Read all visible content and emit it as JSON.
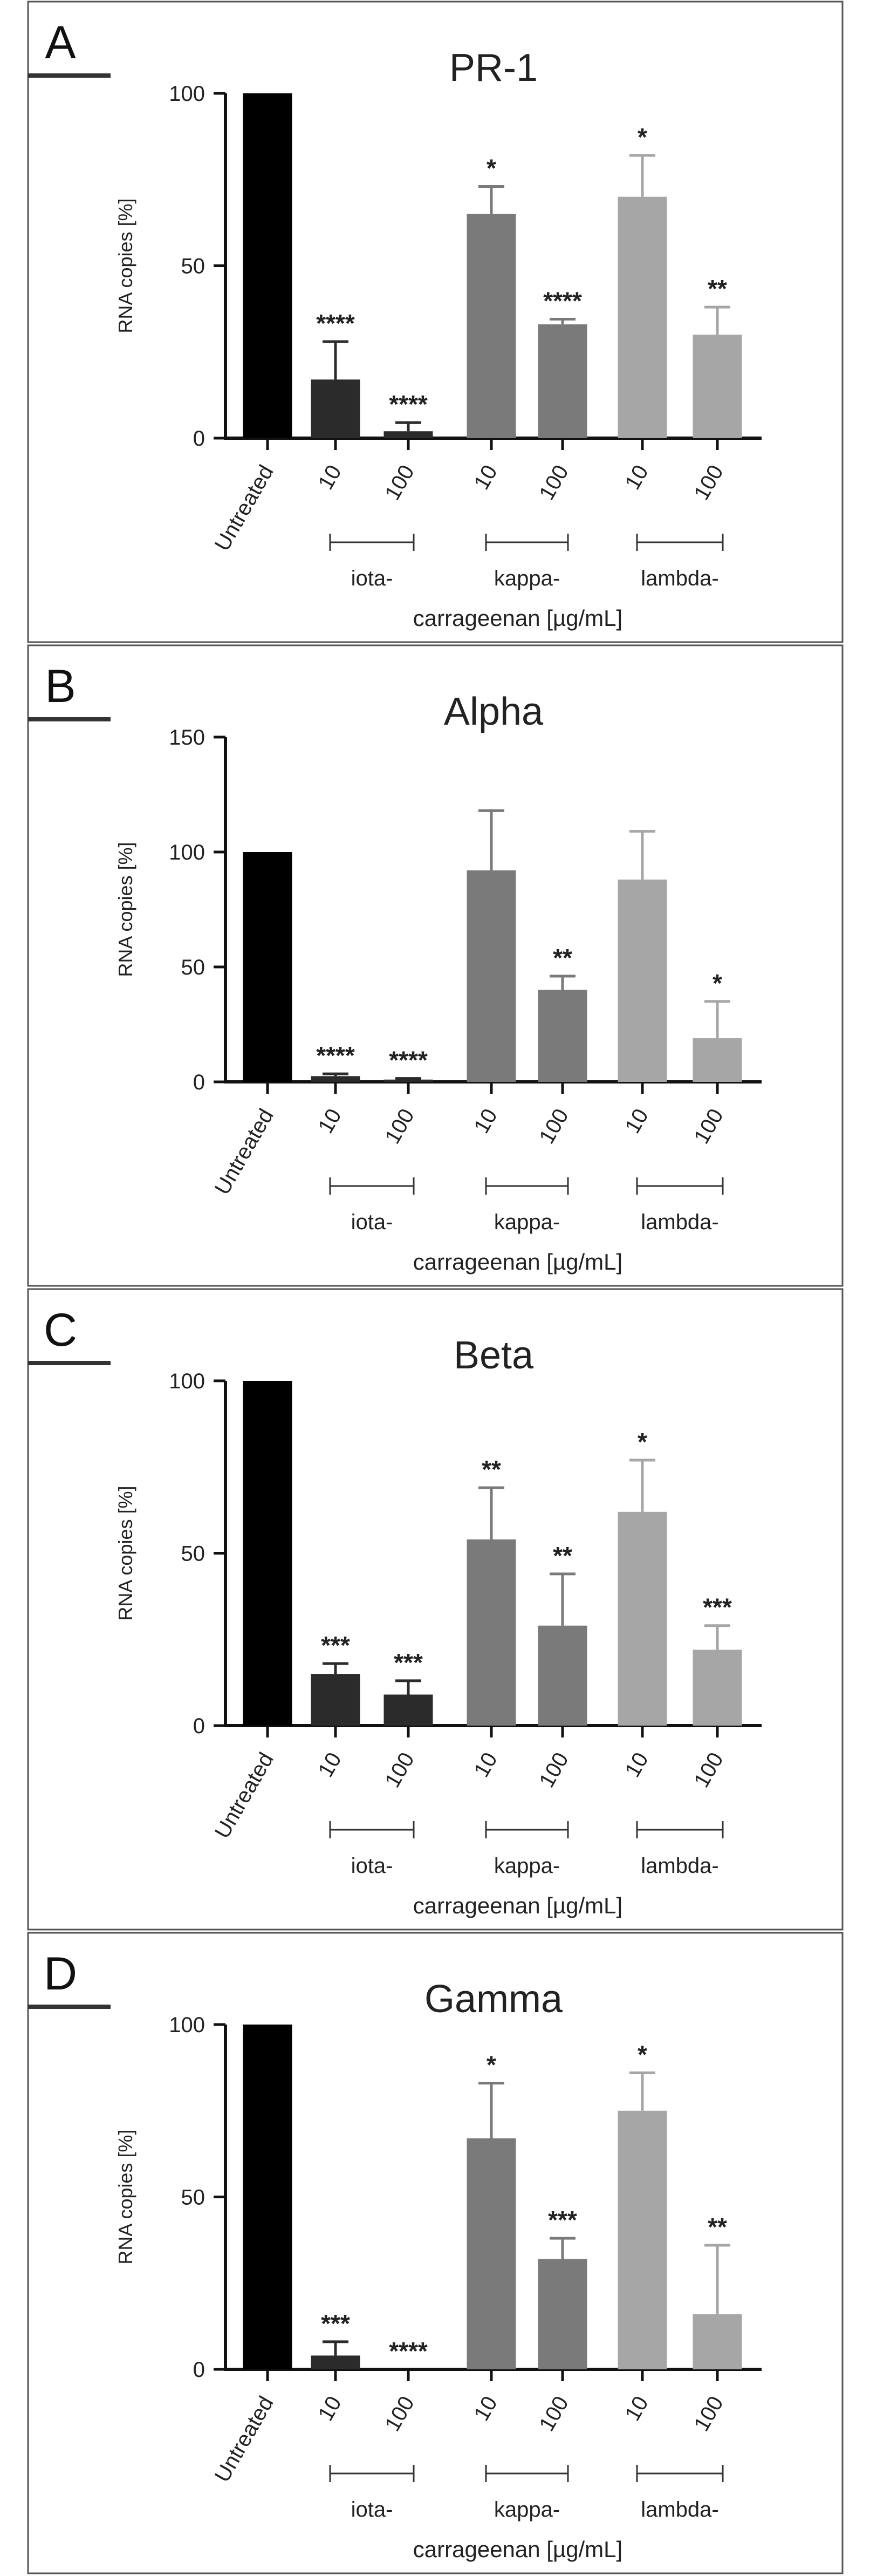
{
  "chart_data": [
    {
      "panel": "A",
      "type": "bar",
      "title": "PR-1",
      "ylabel": "RNA copies [%]",
      "xlabel": "carrageenan [µg/mL]",
      "ylim": [
        0,
        100
      ],
      "yticks": [
        0,
        50,
        100
      ],
      "categories": [
        "Untreated",
        "10",
        "100",
        "10",
        "100",
        "10",
        "100"
      ],
      "groups": [
        "iota-",
        "kappa-",
        "lambda-"
      ],
      "values": [
        100,
        17,
        2,
        65,
        33,
        70,
        30
      ],
      "errors": [
        0,
        11,
        2.5,
        8,
        1.5,
        12,
        8
      ],
      "significance": [
        "",
        "****",
        "****",
        "*",
        "****",
        "*",
        "**"
      ],
      "colors": [
        "#000000",
        "#2b2b2b",
        "#2b2b2b",
        "#7a7a7a",
        "#7a7a7a",
        "#a6a6a6",
        "#a6a6a6"
      ]
    },
    {
      "panel": "B",
      "type": "bar",
      "title": "Alpha",
      "ylabel": "RNA copies [%]",
      "xlabel": "carrageenan [µg/mL]",
      "ylim": [
        0,
        150
      ],
      "yticks": [
        0,
        50,
        100,
        150
      ],
      "categories": [
        "Untreated",
        "10",
        "100",
        "10",
        "100",
        "10",
        "100"
      ],
      "groups": [
        "iota-",
        "kappa-",
        "lambda-"
      ],
      "values": [
        100,
        2.5,
        1,
        92,
        40,
        88,
        19
      ],
      "errors": [
        0,
        1,
        0.5,
        26,
        6,
        21,
        16
      ],
      "significance": [
        "",
        "****",
        "****",
        "",
        "**",
        "",
        "*"
      ],
      "colors": [
        "#000000",
        "#2b2b2b",
        "#2b2b2b",
        "#7a7a7a",
        "#7a7a7a",
        "#a6a6a6",
        "#a6a6a6"
      ]
    },
    {
      "panel": "C",
      "type": "bar",
      "title": "Beta",
      "ylabel": "RNA copies [%]",
      "xlabel": "carrageenan [µg/mL]",
      "ylim": [
        0,
        100
      ],
      "yticks": [
        0,
        50,
        100
      ],
      "categories": [
        "Untreated",
        "10",
        "100",
        "10",
        "100",
        "10",
        "100"
      ],
      "groups": [
        "iota-",
        "kappa-",
        "lambda-"
      ],
      "values": [
        100,
        15,
        9,
        54,
        29,
        62,
        22
      ],
      "errors": [
        0,
        3,
        4,
        15,
        15,
        15,
        7
      ],
      "significance": [
        "",
        "***",
        "***",
        "**",
        "**",
        "*",
        "***"
      ],
      "colors": [
        "#000000",
        "#2b2b2b",
        "#2b2b2b",
        "#7a7a7a",
        "#7a7a7a",
        "#a6a6a6",
        "#a6a6a6"
      ]
    },
    {
      "panel": "D",
      "type": "bar",
      "title": "Gamma",
      "ylabel": "RNA copies [%]",
      "xlabel": "carrageenan [µg/mL]",
      "ylim": [
        0,
        100
      ],
      "yticks": [
        0,
        50,
        100
      ],
      "categories": [
        "Untreated",
        "10",
        "100",
        "10",
        "100",
        "10",
        "100"
      ],
      "groups": [
        "iota-",
        "kappa-",
        "lambda-"
      ],
      "values": [
        100,
        4,
        0,
        67,
        32,
        75,
        16
      ],
      "errors": [
        0,
        4,
        0,
        16,
        6,
        11,
        20
      ],
      "significance": [
        "",
        "***",
        "****",
        "*",
        "***",
        "*",
        "**"
      ],
      "colors": [
        "#000000",
        "#2b2b2b",
        "#2b2b2b",
        "#7a7a7a",
        "#7a7a7a",
        "#a6a6a6",
        "#a6a6a6"
      ]
    }
  ]
}
